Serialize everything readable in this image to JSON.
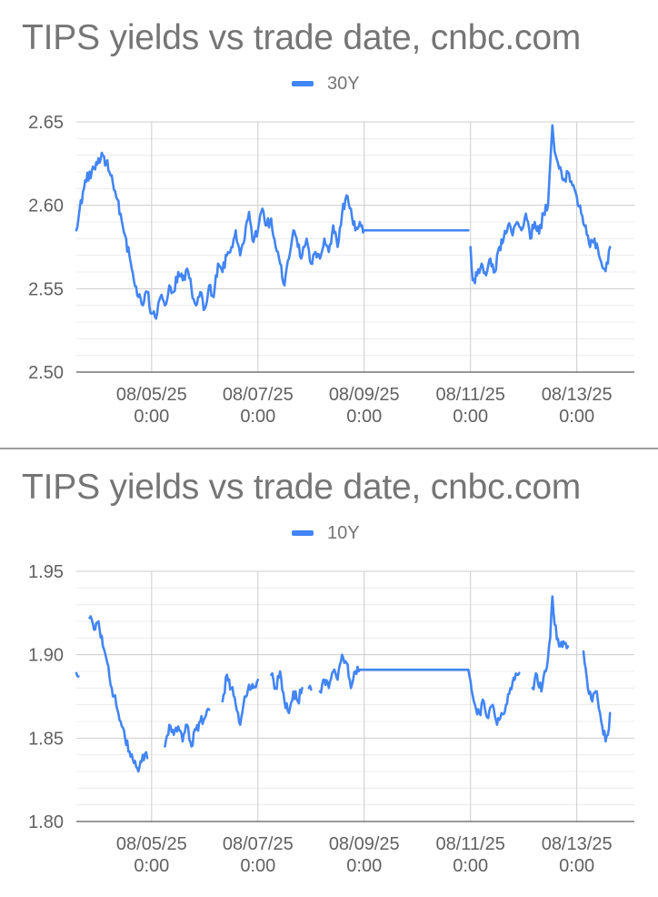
{
  "chart_data": [
    {
      "type": "line",
      "title": "TIPS yields vs trade date, cnbc.com",
      "series": [
        {
          "name": "30Y",
          "color": "#4285f4"
        }
      ],
      "ylim": [
        2.5,
        2.65
      ],
      "yticks": [
        "2.65",
        "2.60",
        "2.55",
        "2.50"
      ],
      "xticks": [
        {
          "date": "08/05/25",
          "time": "0:00"
        },
        {
          "date": "08/07/25",
          "time": "0:00"
        },
        {
          "date": "08/09/25",
          "time": "0:00"
        },
        {
          "date": "08/11/25",
          "time": "0:00"
        },
        {
          "date": "08/13/25",
          "time": "0:00"
        }
      ],
      "xlim": [
        "08/03/25 14:00",
        "08/14/25 02:00"
      ],
      "grid": true,
      "legend_position": "top",
      "segments": [
        [
          [
            "08/03/25 14:00",
            2.585
          ],
          [
            "08/03/25 18:00",
            2.615
          ],
          [
            "08/03/25 22:00",
            2.622
          ],
          [
            "08/04/25 02:00",
            2.63
          ],
          [
            "08/04/25 06:00",
            2.618
          ],
          [
            "08/04/25 10:00",
            2.595
          ],
          [
            "08/04/25 12:00",
            2.582
          ],
          [
            "08/04/25 15:00",
            2.562
          ],
          [
            "08/04/25 18:00",
            2.545
          ],
          [
            "08/04/25 20:00",
            2.54
          ],
          [
            "08/04/25 22:00",
            2.548
          ],
          [
            "08/05/25 00:00",
            2.535
          ],
          [
            "08/05/25 02:00",
            2.532
          ],
          [
            "08/05/25 04:00",
            2.545
          ],
          [
            "08/05/25 06:00",
            2.54
          ],
          [
            "08/05/25 08:00",
            2.552
          ],
          [
            "08/05/25 10:00",
            2.548
          ],
          [
            "08/05/25 12:00",
            2.56
          ],
          [
            "08/05/25 14:00",
            2.555
          ],
          [
            "08/05/25 16:00",
            2.562
          ],
          [
            "08/05/25 18:00",
            2.55
          ],
          [
            "08/05/25 20:00",
            2.54
          ],
          [
            "08/05/25 22:00",
            2.548
          ],
          [
            "08/06/25 00:00",
            2.538
          ],
          [
            "08/06/25 02:00",
            2.552
          ],
          [
            "08/06/25 04:00",
            2.545
          ],
          [
            "08/06/25 06:00",
            2.565
          ],
          [
            "08/06/25 08:00",
            2.56
          ],
          [
            "08/06/25 10:00",
            2.57
          ],
          [
            "08/06/25 12:00",
            2.575
          ],
          [
            "08/06/25 14:00",
            2.585
          ],
          [
            "08/06/25 16:00",
            2.57
          ],
          [
            "08/06/25 18:00",
            2.58
          ],
          [
            "08/06/25 20:00",
            2.596
          ],
          [
            "08/06/25 22:00",
            2.578
          ],
          [
            "08/07/25 00:00",
            2.585
          ],
          [
            "08/07/25 02:00",
            2.598
          ],
          [
            "08/07/25 04:00",
            2.588
          ],
          [
            "08/07/25 06:00",
            2.592
          ],
          [
            "08/07/25 08:00",
            2.575
          ],
          [
            "08/07/25 10:00",
            2.565
          ],
          [
            "08/07/25 12:00",
            2.552
          ],
          [
            "08/07/25 14:00",
            2.568
          ],
          [
            "08/07/25 16:00",
            2.585
          ],
          [
            "08/07/25 18:00",
            2.575
          ],
          [
            "08/07/25 20:00",
            2.57
          ],
          [
            "08/07/25 22:00",
            2.58
          ],
          [
            "08/08/25 00:00",
            2.565
          ],
          [
            "08/08/25 02:00",
            2.572
          ],
          [
            "08/08/25 04:00",
            2.568
          ],
          [
            "08/08/25 06:00",
            2.58
          ],
          [
            "08/08/25 08:00",
            2.572
          ],
          [
            "08/08/25 10:00",
            2.588
          ],
          [
            "08/08/25 12:00",
            2.575
          ],
          [
            "08/08/25 14:00",
            2.595
          ],
          [
            "08/08/25 16:00",
            2.606
          ],
          [
            "08/08/25 18:00",
            2.598
          ],
          [
            "08/08/25 20:00",
            2.585
          ],
          [
            "08/08/25 22:00",
            2.59
          ],
          [
            "08/09/25 00:00",
            2.585
          ],
          [
            "08/10/25 23:00",
            2.585
          ]
        ],
        [
          [
            "08/11/25 00:00",
            2.575
          ],
          [
            "08/11/25 01:00",
            2.555
          ],
          [
            "08/11/25 03:00",
            2.558
          ],
          [
            "08/11/25 05:00",
            2.565
          ],
          [
            "08/11/25 07:00",
            2.558
          ],
          [
            "08/11/25 09:00",
            2.568
          ],
          [
            "08/11/25 11:00",
            2.56
          ],
          [
            "08/11/25 13:00",
            2.575
          ],
          [
            "08/11/25 15:00",
            2.58
          ],
          [
            "08/11/25 17:00",
            2.588
          ],
          [
            "08/11/25 19:00",
            2.582
          ],
          [
            "08/11/25 21:00",
            2.59
          ],
          [
            "08/11/25 23:00",
            2.585
          ],
          [
            "08/12/25 01:00",
            2.595
          ],
          [
            "08/12/25 03:00",
            2.58
          ],
          [
            "08/12/25 05:00",
            2.59
          ],
          [
            "08/12/25 07:00",
            2.583
          ],
          [
            "08/12/25 09:00",
            2.595
          ],
          [
            "08/12/25 11:00",
            2.6
          ],
          [
            "08/12/25 12:00",
            2.625
          ],
          [
            "08/12/25 13:00",
            2.648
          ],
          [
            "08/12/25 14:00",
            2.632
          ],
          [
            "08/12/25 16:00",
            2.622
          ],
          [
            "08/12/25 18:00",
            2.615
          ],
          [
            "08/12/25 20:00",
            2.62
          ],
          [
            "08/12/25 22:00",
            2.612
          ],
          [
            "08/13/25 00:00",
            2.605
          ],
          [
            "08/13/25 02:00",
            2.595
          ],
          [
            "08/13/25 04:00",
            2.588
          ],
          [
            "08/13/25 06:00",
            2.575
          ],
          [
            "08/13/25 08:00",
            2.58
          ],
          [
            "08/13/25 10:00",
            2.57
          ],
          [
            "08/13/25 12:00",
            2.562
          ],
          [
            "08/13/25 14:00",
            2.565
          ],
          [
            "08/13/25 15:00",
            2.575
          ]
        ]
      ]
    },
    {
      "type": "line",
      "title": "TIPS yields vs trade date, cnbc.com",
      "series": [
        {
          "name": "10Y",
          "color": "#4285f4"
        }
      ],
      "ylim": [
        1.8,
        1.95
      ],
      "yticks": [
        "1.95",
        "1.90",
        "1.85",
        "1.80"
      ],
      "xticks": [
        {
          "date": "08/05/25",
          "time": "0:00"
        },
        {
          "date": "08/07/25",
          "time": "0:00"
        },
        {
          "date": "08/09/25",
          "time": "0:00"
        },
        {
          "date": "08/11/25",
          "time": "0:00"
        },
        {
          "date": "08/13/25",
          "time": "0:00"
        }
      ],
      "xlim": [
        "08/03/25 14:00",
        "08/14/25 02:00"
      ],
      "grid": true,
      "legend_position": "top",
      "segments": [
        [
          [
            "08/03/25 14:00",
            1.889
          ],
          [
            "08/03/25 15:00",
            1.887
          ]
        ],
        [
          [
            "08/03/25 20:00",
            1.922
          ],
          [
            "08/03/25 22:00",
            1.915
          ],
          [
            "08/04/25 00:00",
            1.92
          ],
          [
            "08/04/25 02:00",
            1.905
          ],
          [
            "08/04/25 04:00",
            1.895
          ],
          [
            "08/04/25 06:00",
            1.88
          ],
          [
            "08/04/25 08:00",
            1.87
          ],
          [
            "08/04/25 10:00",
            1.86
          ],
          [
            "08/04/25 12:00",
            1.85
          ],
          [
            "08/04/25 14:00",
            1.842
          ],
          [
            "08/04/25 16:00",
            1.835
          ],
          [
            "08/04/25 18:00",
            1.83
          ],
          [
            "08/04/25 20:00",
            1.84
          ],
          [
            "08/04/25 22:00",
            1.838
          ]
        ],
        [
          [
            "08/05/25 06:00",
            1.845
          ],
          [
            "08/05/25 08:00",
            1.858
          ],
          [
            "08/05/25 10:00",
            1.852
          ],
          [
            "08/05/25 12:00",
            1.857
          ],
          [
            "08/05/25 14:00",
            1.848
          ],
          [
            "08/05/25 16:00",
            1.858
          ],
          [
            "08/05/25 18:00",
            1.845
          ],
          [
            "08/05/25 20:00",
            1.855
          ],
          [
            "08/05/25 22:00",
            1.86
          ],
          [
            "08/06/25 00:00",
            1.862
          ],
          [
            "08/06/25 02:00",
            1.867
          ]
        ],
        [
          [
            "08/06/25 08:00",
            1.872
          ],
          [
            "08/06/25 10:00",
            1.888
          ],
          [
            "08/06/25 12:00",
            1.88
          ],
          [
            "08/06/25 14:00",
            1.87
          ],
          [
            "08/06/25 16:00",
            1.858
          ],
          [
            "08/06/25 18:00",
            1.875
          ],
          [
            "08/06/25 20:00",
            1.882
          ],
          [
            "08/06/25 22:00",
            1.88
          ],
          [
            "08/07/25 00:00",
            1.885
          ]
        ],
        [
          [
            "08/07/25 06:00",
            1.888
          ],
          [
            "08/07/25 08:00",
            1.88
          ],
          [
            "08/07/25 10:00",
            1.89
          ],
          [
            "08/07/25 12:00",
            1.872
          ],
          [
            "08/07/25 14:00",
            1.865
          ],
          [
            "08/07/25 16:00",
            1.878
          ],
          [
            "08/07/25 18:00",
            1.872
          ],
          [
            "08/07/25 20:00",
            1.88
          ]
        ],
        [
          [
            "08/07/25 23:00",
            1.88
          ],
          [
            "08/08/25 00:00",
            1.879
          ]
        ],
        [
          [
            "08/08/25 04:00",
            1.878
          ],
          [
            "08/08/25 06:00",
            1.885
          ],
          [
            "08/08/25 08:00",
            1.88
          ],
          [
            "08/08/25 10:00",
            1.89
          ],
          [
            "08/08/25 12:00",
            1.885
          ],
          [
            "08/08/25 14:00",
            1.9
          ],
          [
            "08/08/25 16:00",
            1.895
          ],
          [
            "08/08/25 18:00",
            1.88
          ],
          [
            "08/08/25 20:00",
            1.89
          ],
          [
            "08/08/25 22:00",
            1.891
          ],
          [
            "08/10/25 23:00",
            1.891
          ],
          [
            "08/11/25 02:00",
            1.87
          ],
          [
            "08/11/25 04:00",
            1.865
          ],
          [
            "08/11/25 06:00",
            1.872
          ],
          [
            "08/11/25 08:00",
            1.862
          ],
          [
            "08/11/25 10:00",
            1.87
          ],
          [
            "08/11/25 12:00",
            1.858
          ],
          [
            "08/11/25 14:00",
            1.865
          ],
          [
            "08/11/25 16:00",
            1.87
          ],
          [
            "08/11/25 18:00",
            1.88
          ],
          [
            "08/11/25 20:00",
            1.885
          ],
          [
            "08/11/25 22:00",
            1.889
          ]
        ],
        [
          [
            "08/12/25 04:00",
            1.88
          ],
          [
            "08/12/25 06:00",
            1.888
          ],
          [
            "08/12/25 08:00",
            1.878
          ],
          [
            "08/12/25 10:00",
            1.89
          ],
          [
            "08/12/25 12:00",
            1.91
          ],
          [
            "08/12/25 13:00",
            1.935
          ],
          [
            "08/12/25 14:00",
            1.918
          ],
          [
            "08/12/25 16:00",
            1.905
          ],
          [
            "08/12/25 18:00",
            1.908
          ],
          [
            "08/12/25 20:00",
            1.905
          ]
        ],
        [
          [
            "08/13/25 03:00",
            1.902
          ],
          [
            "08/13/25 05:00",
            1.88
          ],
          [
            "08/13/25 07:00",
            1.872
          ],
          [
            "08/13/25 09:00",
            1.878
          ],
          [
            "08/13/25 11:00",
            1.86
          ],
          [
            "08/13/25 13:00",
            1.848
          ],
          [
            "08/13/25 14:00",
            1.852
          ],
          [
            "08/13/25 15:00",
            1.865
          ]
        ]
      ]
    }
  ]
}
